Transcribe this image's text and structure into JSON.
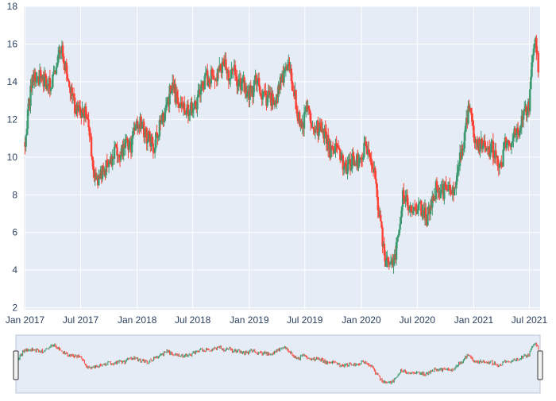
{
  "chart_data": {
    "type": "candlestick",
    "title": "",
    "xlabel": "",
    "ylabel": "",
    "grid": true,
    "legend": "none",
    "range_slider": true,
    "xlim": [
      "2016-12-28",
      "2021-08-05"
    ],
    "ylim": [
      1.9,
      18.0
    ],
    "y_ticks": [
      2,
      4,
      6,
      8,
      10,
      12,
      14,
      16,
      18
    ],
    "x_ticks": [
      {
        "date": "2017-01-01",
        "label": "Jan 2017"
      },
      {
        "date": "2017-07-01",
        "label": "Jul 2017"
      },
      {
        "date": "2018-01-01",
        "label": "Jan 2018"
      },
      {
        "date": "2018-07-01",
        "label": "Jul 2018"
      },
      {
        "date": "2019-01-01",
        "label": "Jan 2019"
      },
      {
        "date": "2019-07-01",
        "label": "Jul 2019"
      },
      {
        "date": "2020-01-01",
        "label": "Jan 2020"
      },
      {
        "date": "2020-07-01",
        "label": "Jul 2020"
      },
      {
        "date": "2021-01-01",
        "label": "Jan 2021"
      },
      {
        "date": "2021-07-01",
        "label": "Jul 2021"
      }
    ],
    "colors": {
      "increasing": "#3d9970",
      "decreasing": "#ff4136",
      "plot_background": "#e5ecf6",
      "grid": "#ffffff",
      "tick_text": "#2a3f5f"
    },
    "close_series": {
      "dates": [
        "2017-01-01",
        "2017-01-10",
        "2017-01-25",
        "2017-02-10",
        "2017-03-01",
        "2017-03-20",
        "2017-04-10",
        "2017-05-01",
        "2017-05-15",
        "2017-06-01",
        "2017-06-20",
        "2017-07-10",
        "2017-07-25",
        "2017-08-10",
        "2017-08-25",
        "2017-09-10",
        "2017-09-25",
        "2017-10-10",
        "2017-10-25",
        "2017-11-10",
        "2017-11-25",
        "2017-12-10",
        "2017-12-25",
        "2018-01-10",
        "2018-01-25",
        "2018-02-10",
        "2018-02-25",
        "2018-03-10",
        "2018-03-25",
        "2018-04-10",
        "2018-04-25",
        "2018-05-10",
        "2018-05-25",
        "2018-06-10",
        "2018-06-25",
        "2018-07-10",
        "2018-07-25",
        "2018-08-10",
        "2018-08-25",
        "2018-09-10",
        "2018-09-25",
        "2018-10-10",
        "2018-10-25",
        "2018-11-10",
        "2018-11-25",
        "2018-12-10",
        "2018-12-25",
        "2019-01-10",
        "2019-01-25",
        "2019-02-10",
        "2019-02-25",
        "2019-03-10",
        "2019-03-25",
        "2019-04-10",
        "2019-04-25",
        "2019-05-10",
        "2019-05-25",
        "2019-06-10",
        "2019-06-25",
        "2019-07-10",
        "2019-07-25",
        "2019-08-10",
        "2019-08-25",
        "2019-09-10",
        "2019-09-25",
        "2019-10-10",
        "2019-10-25",
        "2019-11-10",
        "2019-11-25",
        "2019-12-10",
        "2019-12-25",
        "2020-01-10",
        "2020-01-25",
        "2020-02-10",
        "2020-02-25",
        "2020-03-10",
        "2020-03-20",
        "2020-04-01",
        "2020-04-15",
        "2020-05-01",
        "2020-05-15",
        "2020-06-01",
        "2020-06-15",
        "2020-07-01",
        "2020-07-15",
        "2020-08-01",
        "2020-08-15",
        "2020-09-01",
        "2020-09-15",
        "2020-10-01",
        "2020-10-15",
        "2020-11-01",
        "2020-11-15",
        "2020-12-01",
        "2020-12-15",
        "2021-01-01",
        "2021-01-15",
        "2021-02-01",
        "2021-02-15",
        "2021-03-01",
        "2021-03-15",
        "2021-04-01",
        "2021-04-15",
        "2021-05-01",
        "2021-05-15",
        "2021-06-01",
        "2021-06-15",
        "2021-07-01",
        "2021-07-10",
        "2021-07-20",
        "2021-07-30"
      ],
      "values": [
        10.8,
        12.3,
        14.4,
        14.2,
        14.2,
        13.8,
        14.6,
        15.8,
        14.5,
        13.2,
        12.4,
        12.5,
        12.0,
        9.5,
        8.6,
        9.2,
        9.6,
        10.0,
        10.5,
        10.2,
        11.0,
        10.5,
        11.4,
        12.0,
        11.3,
        11.0,
        10.6,
        11.3,
        12.2,
        12.8,
        14.0,
        13.0,
        12.5,
        12.7,
        12.5,
        12.8,
        13.4,
        14.1,
        14.3,
        14.0,
        14.6,
        14.9,
        14.4,
        14.6,
        13.9,
        13.9,
        13.3,
        13.5,
        14.2,
        13.5,
        13.0,
        13.2,
        12.7,
        14.0,
        14.5,
        14.9,
        13.6,
        12.1,
        11.8,
        12.7,
        11.4,
        11.6,
        11.3,
        11.0,
        10.2,
        10.4,
        9.8,
        9.5,
        9.7,
        9.8,
        9.6,
        10.5,
        10.0,
        9.4,
        7.5,
        5.5,
        4.5,
        3.8,
        4.4,
        6.0,
        8.2,
        7.6,
        7.3,
        7.0,
        7.3,
        6.8,
        7.2,
        8.4,
        8.0,
        8.3,
        8.6,
        8.2,
        9.8,
        10.8,
        12.8,
        11.3,
        10.5,
        10.8,
        10.2,
        10.5,
        10.0,
        9.6,
        10.8,
        10.3,
        11.2,
        11.6,
        12.2,
        12.8,
        15.0,
        16.3,
        14.6
      ]
    }
  }
}
